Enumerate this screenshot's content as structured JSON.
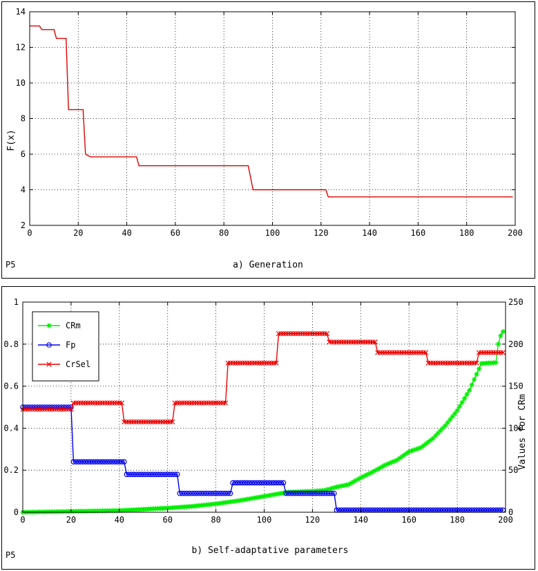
{
  "chart_data": [
    {
      "type": "line",
      "panel_tag": "P5",
      "xlabel": "a) Generation",
      "ylabel": "F(x)",
      "xlim": [
        0,
        200
      ],
      "ylim": [
        2,
        14
      ],
      "xticks": [
        0,
        20,
        40,
        60,
        80,
        100,
        120,
        140,
        160,
        180,
        200
      ],
      "yticks": [
        2,
        4,
        6,
        8,
        10,
        12,
        14
      ],
      "grid": true,
      "series": [
        {
          "color": "#e00000",
          "x": [
            0,
            4,
            5,
            10,
            11,
            15,
            16,
            22,
            23,
            25,
            44,
            45,
            90,
            92,
            122,
            123,
            199
          ],
          "y": [
            13.2,
            13.2,
            13.0,
            13.0,
            12.5,
            12.5,
            8.5,
            8.5,
            6.0,
            5.85,
            5.85,
            5.35,
            5.35,
            4.0,
            4.0,
            3.6,
            3.6
          ]
        }
      ]
    },
    {
      "type": "line",
      "panel_tag": "P5",
      "xlabel": "b) Self-adaptative parameters",
      "ylabel_right": "Values for CRm",
      "xlim": [
        0,
        200
      ],
      "ylim": [
        0,
        1
      ],
      "ylim_right": [
        0,
        250
      ],
      "xticks": [
        0,
        20,
        40,
        60,
        80,
        100,
        120,
        140,
        160,
        180,
        200
      ],
      "yticks": [
        0,
        0.2,
        0.4,
        0.6,
        0.8,
        1
      ],
      "yticks_right": [
        0,
        50,
        100,
        150,
        200,
        250
      ],
      "grid": true,
      "legend_position": "top-left",
      "series": [
        {
          "name": "CRm",
          "color": "#00ee00",
          "marker": "star",
          "axis": "right",
          "x": [
            0,
            20,
            40,
            60,
            70,
            80,
            90,
            100,
            110,
            120,
            125,
            130,
            135,
            140,
            145,
            150,
            155,
            160,
            165,
            170,
            175,
            180,
            185,
            190,
            196,
            197,
            198,
            199
          ],
          "y": [
            0,
            1,
            2,
            5,
            7,
            10,
            14,
            19,
            24,
            25,
            26,
            30,
            33,
            41,
            48,
            56,
            62,
            72,
            77,
            88,
            103,
            121,
            145,
            177,
            178,
            200,
            210,
            215
          ]
        },
        {
          "name": "Fp",
          "color": "#0000ee",
          "marker": "circle",
          "axis": "left",
          "x": [
            0,
            20,
            21,
            42,
            43,
            64,
            65,
            86,
            87,
            108,
            109,
            129,
            130,
            199
          ],
          "y": [
            0.5,
            0.5,
            0.24,
            0.24,
            0.18,
            0.18,
            0.09,
            0.09,
            0.14,
            0.14,
            0.09,
            0.09,
            0.01,
            0.01
          ]
        },
        {
          "name": "CrSel",
          "color": "#ee0000",
          "marker": "x",
          "axis": "left",
          "x": [
            0,
            20,
            21,
            41,
            42,
            62,
            63,
            84,
            85,
            105,
            106,
            126,
            127,
            146,
            147,
            167,
            168,
            188,
            189,
            199
          ],
          "y": [
            0.49,
            0.49,
            0.52,
            0.52,
            0.43,
            0.43,
            0.52,
            0.52,
            0.71,
            0.71,
            0.85,
            0.85,
            0.81,
            0.81,
            0.76,
            0.76,
            0.71,
            0.71,
            0.76,
            0.76
          ]
        }
      ]
    }
  ]
}
